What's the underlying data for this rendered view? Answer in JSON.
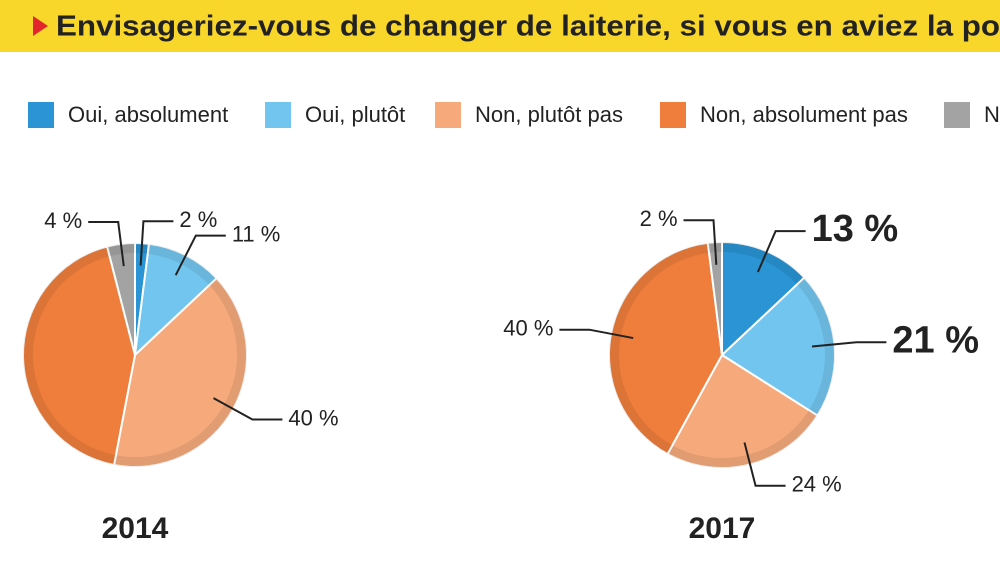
{
  "header": {
    "title": "Envisageriez-vous de changer de laiterie, si vous en aviez la po"
  },
  "chart_data": [
    {
      "type": "pie",
      "title": "2014",
      "categories": [
        "Oui, absolument",
        "Oui, plutôt",
        "Non, plutôt pas",
        "Non, absolument pas",
        "N"
      ],
      "colors": [
        "#2a94d4",
        "#72c5ee",
        "#f6aa7c",
        "#ef7d3c",
        "#a3a3a3"
      ],
      "values": [
        2,
        11,
        40,
        43,
        4
      ],
      "value_labels": [
        "2 %",
        "11 %",
        "40 %",
        null,
        "4 %"
      ]
    },
    {
      "type": "pie",
      "title": "2017",
      "values": [
        13,
        21,
        24,
        40,
        2
      ],
      "value_labels": [
        "13 %",
        "21 %",
        "24 %",
        "40 %",
        "2 %"
      ]
    }
  ]
}
